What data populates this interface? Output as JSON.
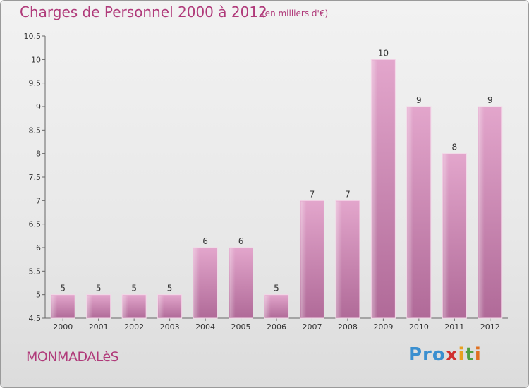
{
  "title": "Charges de Personnel 2000 à 2012",
  "unit": "(en milliers d'€)",
  "commune": "MONMADALèS",
  "logo": {
    "p1": "Pro",
    "x": "x",
    "i": "i",
    "t": "t",
    "i2": "i"
  },
  "colors": {
    "bar_top": "#e3a6cc",
    "bar_bottom": "#b06a98",
    "title": "#b03a7a"
  },
  "chart_data": {
    "type": "bar",
    "categories": [
      "2000",
      "2001",
      "2002",
      "2003",
      "2004",
      "2005",
      "2006",
      "2007",
      "2008",
      "2009",
      "2010",
      "2011",
      "2012"
    ],
    "values": [
      5,
      5,
      5,
      5,
      6,
      6,
      5,
      7,
      7,
      10,
      9,
      8,
      9
    ],
    "ylim": [
      4.5,
      10.5
    ],
    "yticks": [
      "4.5",
      "5",
      "5.5",
      "6",
      "6.5",
      "7",
      "7.5",
      "8",
      "8.5",
      "9",
      "9.5",
      "10",
      "10.5"
    ],
    "grid": false,
    "title": "Charges de Personnel 2000 à 2012",
    "xlabel": "",
    "ylabel": ""
  }
}
